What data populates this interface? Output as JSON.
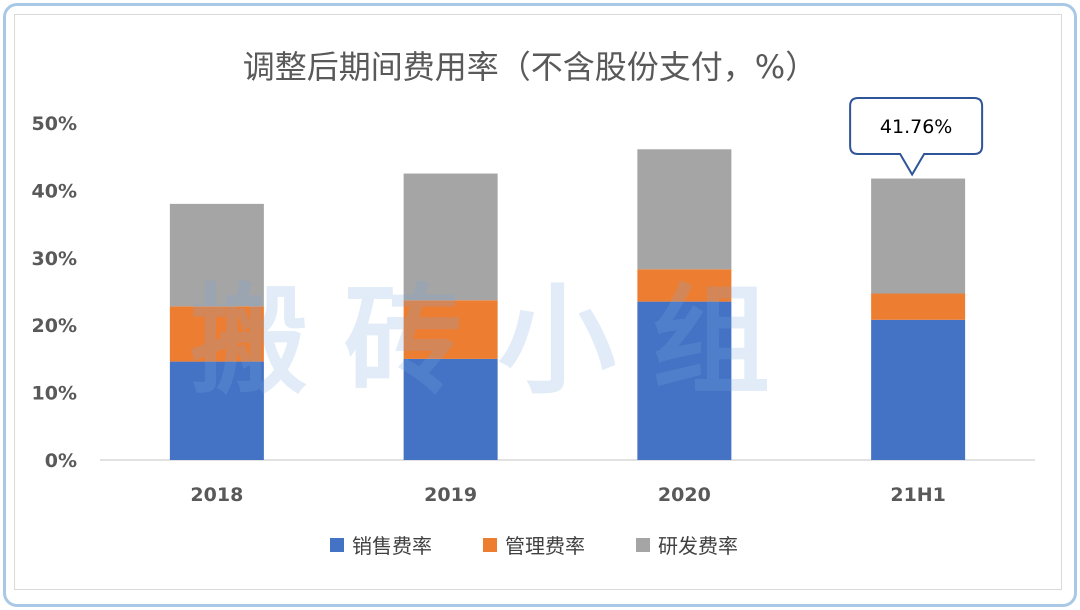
{
  "chart_data": {
    "type": "bar",
    "stacked": true,
    "title": "调整后期间费用率（不含股份支付，%）",
    "categories": [
      "2018",
      "2019",
      "2020",
      "21H1"
    ],
    "series": [
      {
        "name": "销售费率",
        "color": "#4472c4",
        "values": [
          14.6,
          15.0,
          23.5,
          20.8
        ]
      },
      {
        "name": "管理费率",
        "color": "#ed7d31",
        "values": [
          8.2,
          8.7,
          4.8,
          3.9
        ]
      },
      {
        "name": "研发费率",
        "color": "#a5a5a5",
        "values": [
          15.2,
          18.8,
          17.8,
          17.06
        ]
      }
    ],
    "ylim": [
      0,
      50
    ],
    "yticks": [
      "0%",
      "10%",
      "20%",
      "30%",
      "40%",
      "50%"
    ],
    "grid": false,
    "legend_position": "bottom",
    "annotation": {
      "category": "21H1",
      "text": "41.76%",
      "value": 41.76
    }
  },
  "watermark": "搬砖小组"
}
